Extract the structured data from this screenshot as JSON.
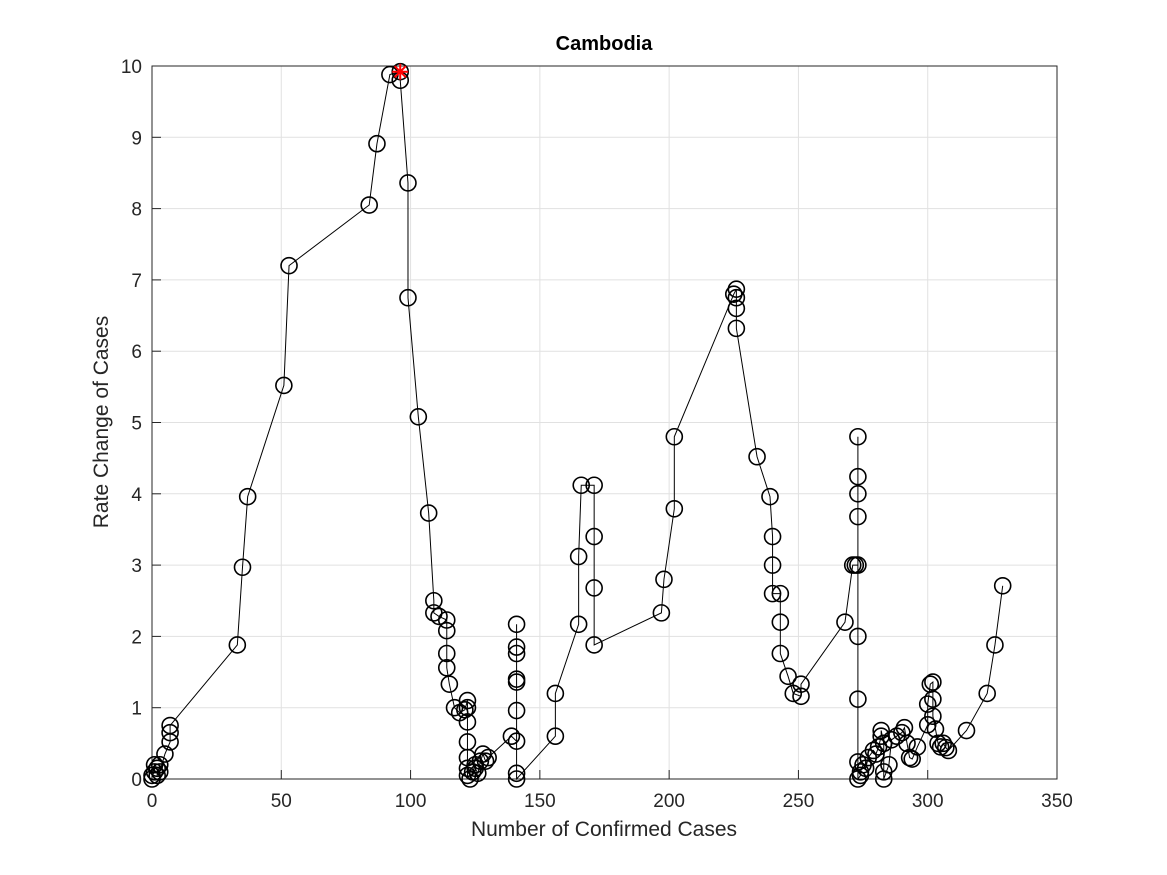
{
  "chart_data": {
    "type": "line",
    "title": "Cambodia",
    "x_label": "Number of Confirmed Cases",
    "y_label": "Rate Change of Cases",
    "x": [
      0,
      0,
      1,
      1,
      2,
      2,
      3,
      3,
      5,
      7,
      7,
      7,
      33,
      35,
      37,
      51,
      53,
      84,
      87,
      92,
      96,
      96,
      99,
      99,
      103,
      107,
      109,
      109,
      111,
      114,
      114,
      114,
      114,
      115,
      117,
      119,
      121,
      122,
      122,
      122,
      122,
      122,
      122,
      122,
      123,
      124,
      125,
      125,
      126,
      127,
      128,
      129,
      130,
      139,
      141,
      141,
      141,
      141,
      141,
      141,
      141,
      141,
      141,
      156,
      156,
      165,
      165,
      166,
      171,
      171,
      171,
      171,
      197,
      198,
      202,
      202,
      225,
      226,
      226,
      226,
      226,
      234,
      239,
      240,
      240,
      240,
      243,
      243,
      243,
      246,
      248,
      251,
      251,
      268,
      271,
      272,
      273,
      273,
      273,
      273,
      273,
      273,
      273,
      273,
      273,
      274,
      274,
      275,
      276,
      277,
      279,
      280,
      281,
      282,
      282,
      283,
      283,
      283,
      285,
      286,
      288,
      290,
      291,
      292,
      293,
      294,
      296,
      300,
      300,
      301,
      302,
      302,
      302,
      303,
      304,
      305,
      306,
      307,
      308,
      315,
      323,
      326,
      329
    ],
    "values": [
      0,
      0.05,
      0.1,
      0.2,
      0.15,
      0.05,
      0.2,
      0.1,
      0.35,
      0.52,
      0.65,
      0.75,
      1.88,
      2.97,
      3.96,
      5.52,
      7.2,
      8.05,
      8.91,
      9.88,
      9.92,
      9.8,
      8.36,
      6.75,
      5.08,
      3.73,
      2.5,
      2.33,
      2.28,
      2.23,
      2.08,
      1.76,
      1.56,
      1.33,
      1.0,
      0.93,
      0.97,
      1.1,
      1.0,
      0.8,
      0.52,
      0.3,
      0.15,
      0.05,
      0.0,
      0.1,
      0.2,
      0.15,
      0.08,
      0.25,
      0.35,
      0.25,
      0.3,
      0.6,
      0.53,
      0.96,
      1.36,
      1.4,
      1.76,
      1.85,
      2.17,
      0.08,
      0.0,
      0.6,
      1.2,
      2.17,
      3.12,
      4.12,
      4.12,
      3.4,
      2.68,
      1.88,
      2.33,
      2.8,
      3.79,
      4.8,
      6.8,
      6.87,
      6.75,
      6.6,
      6.32,
      4.52,
      3.96,
      3.4,
      3.0,
      2.6,
      2.6,
      2.2,
      1.76,
      1.44,
      1.2,
      1.16,
      1.33,
      2.2,
      3.0,
      3.0,
      3.0,
      3.68,
      4.0,
      4.24,
      4.8,
      2.0,
      1.12,
      0.24,
      0.0,
      0.05,
      0.1,
      0.2,
      0.15,
      0.3,
      0.4,
      0.35,
      0.45,
      0.6,
      0.68,
      0.5,
      0.1,
      0.0,
      0.2,
      0.55,
      0.6,
      0.65,
      0.72,
      0.5,
      0.3,
      0.28,
      0.45,
      0.76,
      1.05,
      1.33,
      1.36,
      1.12,
      0.88,
      0.7,
      0.5,
      0.45,
      0.5,
      0.44,
      0.4,
      0.68,
      1.2,
      1.88,
      2.71
    ],
    "color": "#000000",
    "marker": "circle",
    "highlight": {
      "x": 96,
      "y": 9.92,
      "color": "#ff0000",
      "marker": "star"
    },
    "xlim": [
      0,
      350
    ],
    "xticks": [
      0,
      50,
      100,
      150,
      200,
      250,
      300,
      350
    ],
    "ylim": [
      0,
      10
    ],
    "yticks": [
      0,
      1,
      2,
      3,
      4,
      5,
      6,
      7,
      8,
      9,
      10
    ],
    "grid": true
  }
}
